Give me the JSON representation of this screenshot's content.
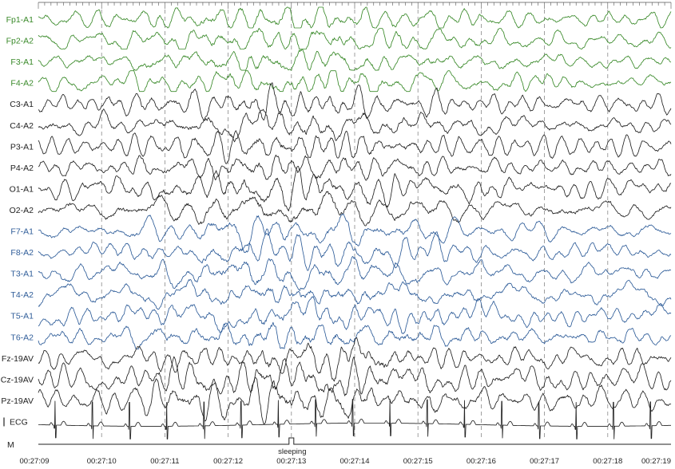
{
  "chart_data": {
    "type": "line",
    "title": "",
    "xlabel": "",
    "ylabel": "",
    "time_ticks": [
      "00:27:09",
      "00:27:10",
      "00:27:11",
      "00:27:12",
      "00:27:13",
      "00:27:14",
      "00:27:15",
      "00:27:16",
      "00:27:17",
      "00:27:18",
      "00:27:19"
    ],
    "time_range_seconds": [
      0,
      10
    ],
    "grid": true,
    "colors": {
      "frontal": "#3a8a2a",
      "central": "#222222",
      "temporal": "#2f5d99"
    },
    "series": [
      {
        "name": "Fp1-A1",
        "group": "frontal",
        "amp": 9,
        "seed": 11,
        "clip": true
      },
      {
        "name": "Fp2-A2",
        "group": "frontal",
        "amp": 9,
        "seed": 12,
        "clip": true
      },
      {
        "name": "F3-A1",
        "group": "frontal",
        "amp": 9,
        "seed": 13,
        "clip": true
      },
      {
        "name": "F4-A2",
        "group": "frontal",
        "amp": 9,
        "seed": 14,
        "clip": true
      },
      {
        "name": "C3-A1",
        "group": "central",
        "amp": 10,
        "seed": 21
      },
      {
        "name": "C4-A2",
        "group": "central",
        "amp": 10,
        "seed": 22
      },
      {
        "name": "P3-A1",
        "group": "central",
        "amp": 10,
        "seed": 23
      },
      {
        "name": "P4-A2",
        "group": "central",
        "amp": 10,
        "seed": 24
      },
      {
        "name": "O1-A1",
        "group": "central",
        "amp": 11,
        "seed": 25
      },
      {
        "name": "O2-A2",
        "group": "central",
        "amp": 11,
        "seed": 26
      },
      {
        "name": "F7-A1",
        "group": "temporal",
        "amp": 9,
        "seed": 31
      },
      {
        "name": "F8-A2",
        "group": "temporal",
        "amp": 9,
        "seed": 32
      },
      {
        "name": "T3-A1",
        "group": "temporal",
        "amp": 10,
        "seed": 33
      },
      {
        "name": "T4-A2",
        "group": "temporal",
        "amp": 10,
        "seed": 34
      },
      {
        "name": "T5-A1",
        "group": "temporal",
        "amp": 10,
        "seed": 35
      },
      {
        "name": "T6-A2",
        "group": "temporal",
        "amp": 11,
        "seed": 36
      },
      {
        "name": "Fz-19AV",
        "group": "central",
        "amp": 11,
        "seed": 41
      },
      {
        "name": "Cz-19AV",
        "group": "central",
        "amp": 12,
        "seed": 42
      },
      {
        "name": "Pz-19AV",
        "group": "central",
        "amp": 12,
        "seed": 43
      },
      {
        "name": "ECG",
        "group": "central",
        "type": "ecg",
        "beats_per_second": 1.7
      }
    ],
    "marker_channel": {
      "name": "M",
      "annotation": "sleeping",
      "annotation_time_seconds": 4.0
    }
  }
}
